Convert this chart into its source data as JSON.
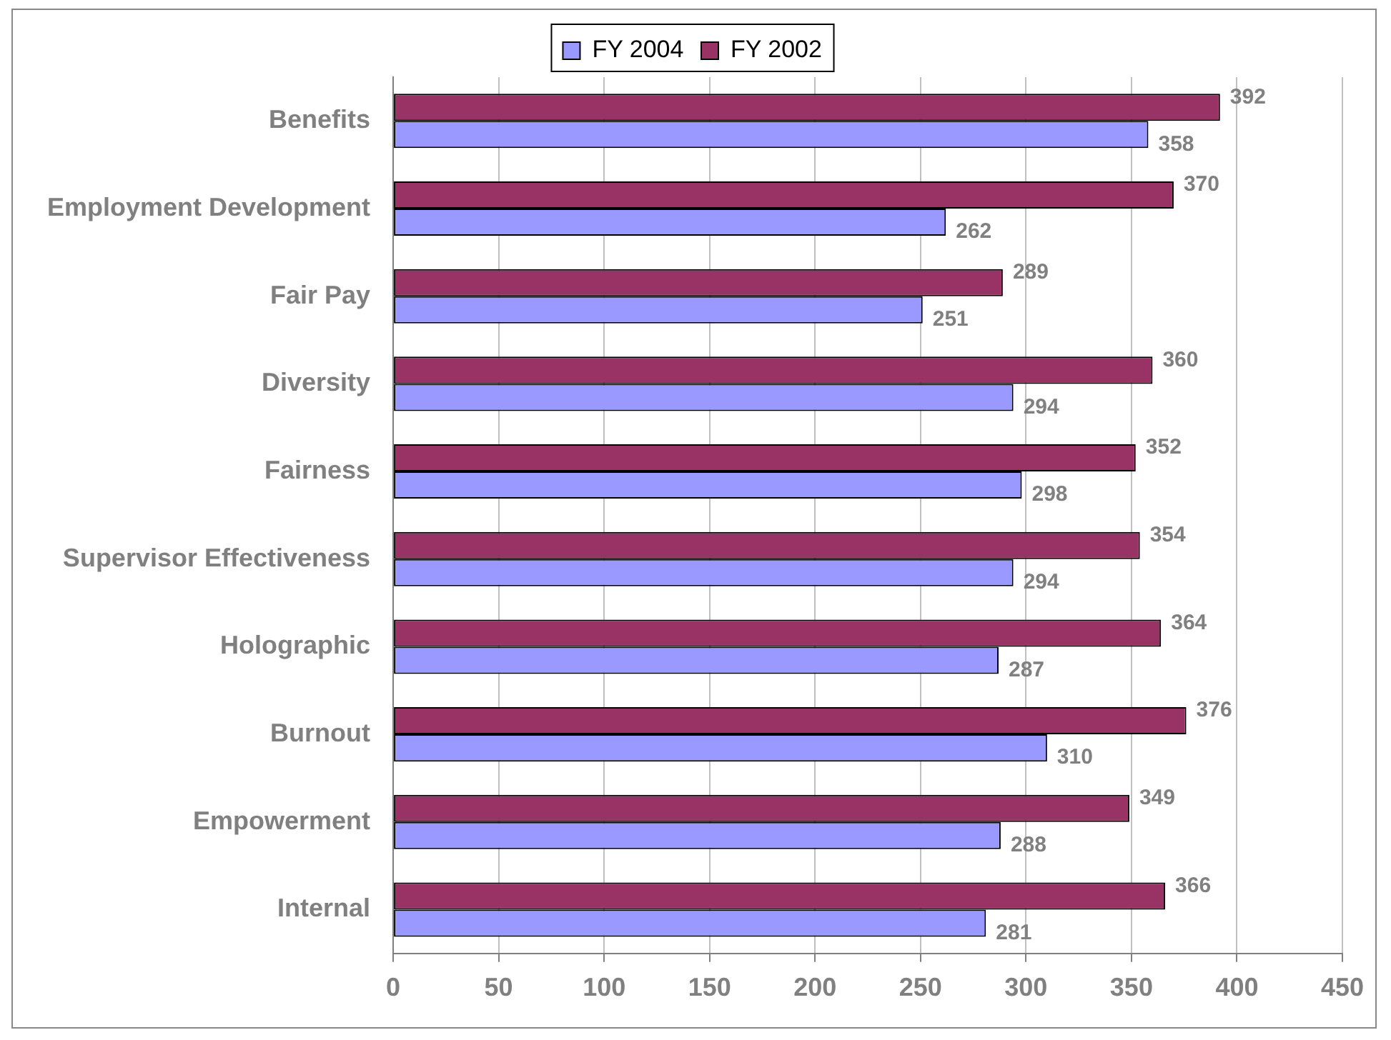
{
  "chart_data": {
    "type": "bar",
    "orientation": "horizontal",
    "categories": [
      "Benefits",
      "Employment Development",
      "Fair Pay",
      "Diversity",
      "Fairness",
      "Supervisor Effectiveness",
      "Holographic",
      "Burnout",
      "Empowerment",
      "Internal"
    ],
    "series": [
      {
        "name": "FY 2002",
        "color": "#993366",
        "values": [
          392,
          370,
          289,
          360,
          352,
          354,
          364,
          376,
          349,
          366
        ]
      },
      {
        "name": "FY 2004",
        "color": "#9999ff",
        "values": [
          358,
          262,
          251,
          294,
          298,
          294,
          287,
          310,
          288,
          281
        ]
      }
    ],
    "xlim": [
      0,
      450
    ],
    "xticks": [
      0,
      50,
      100,
      150,
      200,
      250,
      300,
      350,
      400,
      450
    ],
    "grid": "x",
    "legend": "top",
    "data_labels": true
  }
}
